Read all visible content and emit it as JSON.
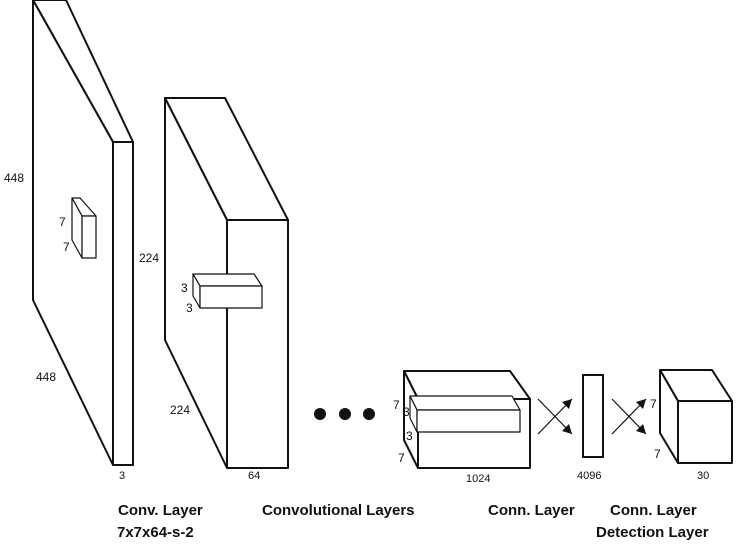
{
  "layers": [
    {
      "id": "input",
      "dims": {
        "height": "448",
        "depth": "448",
        "channels": "3"
      },
      "kernel": {
        "w": "7",
        "h": "7"
      },
      "caption_line1": "Conv. Layer",
      "caption_line2": "7x7x64-s-2"
    },
    {
      "id": "conv1",
      "dims": {
        "height": "224",
        "depth": "224",
        "channels": "64"
      },
      "kernel": {
        "w": "3",
        "h": "3"
      },
      "caption_line1": "Convolutional Layers"
    },
    {
      "id": "conv-final",
      "dims": {
        "height": "7",
        "depth": "7",
        "channels": "1024"
      },
      "kernel": {
        "w": "3",
        "h": "3"
      },
      "caption_line1": "Conn. Layer"
    },
    {
      "id": "fc",
      "dims": {
        "channels": "4096"
      },
      "caption_line1": "Conn. Layer",
      "caption_line2": "Detection Layer"
    },
    {
      "id": "output",
      "dims": {
        "height": "7",
        "depth": "7",
        "channels": "30"
      }
    }
  ],
  "ellipsis": "..."
}
